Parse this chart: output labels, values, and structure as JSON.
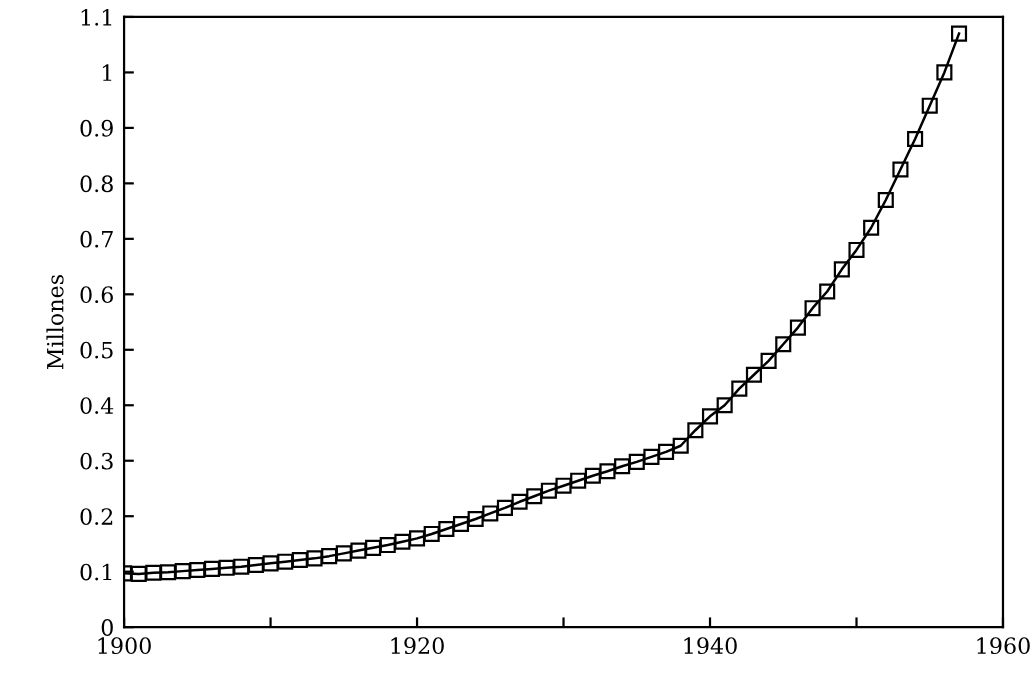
{
  "chart_data": {
    "type": "line",
    "ylabel": "Millones",
    "x": [
      1900,
      1901,
      1902,
      1903,
      1904,
      1905,
      1906,
      1907,
      1908,
      1909,
      1910,
      1911,
      1912,
      1913,
      1914,
      1915,
      1916,
      1917,
      1918,
      1919,
      1920,
      1921,
      1922,
      1923,
      1924,
      1925,
      1926,
      1927,
      1928,
      1929,
      1930,
      1931,
      1932,
      1933,
      1934,
      1935,
      1936,
      1937,
      1938,
      1939,
      1940,
      1941,
      1942,
      1943,
      1944,
      1945,
      1946,
      1947,
      1948,
      1949,
      1950,
      1951,
      1952,
      1953,
      1954,
      1955,
      1956,
      1957
    ],
    "series": [
      {
        "color": "#000000",
        "values": [
          0.097,
          0.096,
          0.098,
          0.099,
          0.101,
          0.103,
          0.105,
          0.107,
          0.109,
          0.112,
          0.115,
          0.118,
          0.121,
          0.124,
          0.128,
          0.133,
          0.138,
          0.143,
          0.148,
          0.154,
          0.16,
          0.168,
          0.177,
          0.186,
          0.195,
          0.205,
          0.215,
          0.226,
          0.236,
          0.246,
          0.255,
          0.264,
          0.273,
          0.281,
          0.29,
          0.298,
          0.307,
          0.316,
          0.327,
          0.355,
          0.38,
          0.4,
          0.43,
          0.455,
          0.48,
          0.51,
          0.54,
          0.575,
          0.605,
          0.645,
          0.68,
          0.72,
          0.77,
          0.825,
          0.88,
          0.94,
          1.0,
          1.07
        ]
      }
    ],
    "xlim": [
      1900,
      1960
    ],
    "ylim": [
      0,
      1.1
    ],
    "xticks": [
      1900,
      {
        "value": 1910,
        "label": null
      },
      1920,
      {
        "value": 1930,
        "label": null
      },
      1940,
      {
        "value": 1950,
        "label": null
      },
      1960
    ],
    "yticks": [
      0,
      0.1,
      0.2,
      0.3,
      0.4,
      0.5,
      0.6,
      0.7,
      0.8,
      0.9,
      1,
      1.1
    ],
    "marker": "square",
    "line_style": "solid",
    "grid": false
  }
}
